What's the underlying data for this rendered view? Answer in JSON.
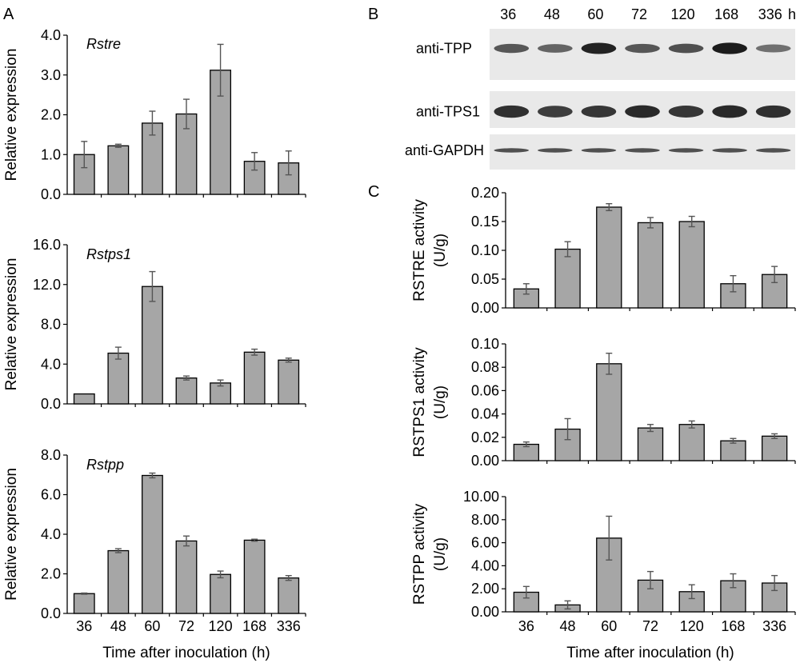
{
  "panel_labels": {
    "a": "A",
    "b": "B",
    "c": "C"
  },
  "shared_x": {
    "categories": [
      "36",
      "48",
      "60",
      "72",
      "120",
      "168",
      "336"
    ],
    "label": "Time after inoculation (h)"
  },
  "blot": {
    "time_labels": [
      "36",
      "48",
      "60",
      "72",
      "120",
      "168",
      "336"
    ],
    "unit": "h",
    "rows": [
      {
        "label": "anti-TPP",
        "intensity": [
          0.55,
          0.45,
          0.95,
          0.55,
          0.6,
          1.0,
          0.35
        ]
      },
      {
        "label": "anti-TPS1",
        "intensity": [
          0.85,
          0.75,
          0.8,
          0.9,
          0.8,
          0.9,
          0.85
        ]
      },
      {
        "label": "anti-GAPDH",
        "intensity": [
          0.6,
          0.6,
          0.6,
          0.6,
          0.6,
          0.6,
          0.6
        ]
      }
    ]
  },
  "colors": {
    "bar": "#a6a6a6",
    "bar_edge": "#000000",
    "error": "#555555",
    "blot_bg": "#e9e9e9",
    "band": "#111111"
  },
  "chart_data": [
    {
      "id": "A1",
      "type": "bar",
      "title": "Rstre",
      "title_italic": true,
      "categories": [
        "36",
        "48",
        "60",
        "72",
        "120",
        "168",
        "336"
      ],
      "values": [
        1.0,
        1.22,
        1.79,
        2.02,
        3.12,
        0.83,
        0.79
      ],
      "errors": [
        0.33,
        0.04,
        0.3,
        0.37,
        0.65,
        0.22,
        0.3
      ],
      "ylabel": "Relative expression",
      "ylim": [
        0,
        4.0
      ],
      "yticks": [
        "0.0",
        "1.0",
        "2.0",
        "3.0",
        "4.0"
      ],
      "ytick_values": [
        0,
        1,
        2,
        3,
        4
      ],
      "xlabel": "",
      "show_xticklabels": false
    },
    {
      "id": "A2",
      "type": "bar",
      "title": "Rstps1",
      "title_italic": true,
      "categories": [
        "36",
        "48",
        "60",
        "72",
        "120",
        "168",
        "336"
      ],
      "values": [
        1.0,
        5.1,
        11.8,
        2.6,
        2.1,
        5.2,
        4.4
      ],
      "errors": [
        0.0,
        0.6,
        1.5,
        0.2,
        0.3,
        0.3,
        0.2
      ],
      "ylabel": "Relative expression",
      "ylim": [
        0,
        16.0
      ],
      "yticks": [
        "0.0",
        "4.0",
        "8.0",
        "12.0",
        "16.0"
      ],
      "ytick_values": [
        0,
        4,
        8,
        12,
        16
      ],
      "xlabel": "",
      "show_xticklabels": false
    },
    {
      "id": "A3",
      "type": "bar",
      "title": "Rstpp",
      "title_italic": true,
      "categories": [
        "36",
        "48",
        "60",
        "72",
        "120",
        "168",
        "336"
      ],
      "values": [
        1.0,
        3.17,
        6.97,
        3.66,
        1.97,
        3.7,
        1.79
      ],
      "errors": [
        0.03,
        0.1,
        0.12,
        0.25,
        0.17,
        0.05,
        0.12
      ],
      "ylabel": "Relative expression",
      "ylim": [
        0,
        8.0
      ],
      "yticks": [
        "0.0",
        "2.0",
        "4.0",
        "6.0",
        "8.0"
      ],
      "ytick_values": [
        0,
        2,
        4,
        6,
        8
      ],
      "xlabel": "Time after inoculation (h)",
      "show_xticklabels": true
    },
    {
      "id": "C1",
      "type": "bar",
      "title": "",
      "categories": [
        "36",
        "48",
        "60",
        "72",
        "120",
        "168",
        "336"
      ],
      "values": [
        0.033,
        0.102,
        0.175,
        0.148,
        0.15,
        0.042,
        0.058
      ],
      "errors": [
        0.009,
        0.013,
        0.006,
        0.009,
        0.009,
        0.014,
        0.014
      ],
      "ylabel": [
        "RSTRE activity",
        "(U/g)"
      ],
      "ylim": [
        0,
        0.2
      ],
      "yticks": [
        "0.00",
        "0.05",
        "0.10",
        "0.15",
        "0.20"
      ],
      "ytick_values": [
        0,
        0.05,
        0.1,
        0.15,
        0.2
      ],
      "xlabel": "",
      "show_xticklabels": false
    },
    {
      "id": "C2",
      "type": "bar",
      "title": "",
      "categories": [
        "36",
        "48",
        "60",
        "72",
        "120",
        "168",
        "336"
      ],
      "values": [
        0.014,
        0.027,
        0.083,
        0.028,
        0.031,
        0.017,
        0.021
      ],
      "errors": [
        0.002,
        0.009,
        0.009,
        0.003,
        0.003,
        0.002,
        0.002
      ],
      "ylabel": [
        "RSTPS1 activity",
        "(U/g)"
      ],
      "ylim": [
        0,
        0.1
      ],
      "yticks": [
        "0.00",
        "0.02",
        "0.04",
        "0.06",
        "0.08",
        "0.10"
      ],
      "ytick_values": [
        0,
        0.02,
        0.04,
        0.06,
        0.08,
        0.1
      ],
      "xlabel": "",
      "show_xticklabels": false
    },
    {
      "id": "C3",
      "type": "bar",
      "title": "",
      "categories": [
        "36",
        "48",
        "60",
        "72",
        "120",
        "168",
        "336"
      ],
      "values": [
        1.7,
        0.6,
        6.4,
        2.75,
        1.75,
        2.7,
        2.5
      ],
      "errors": [
        0.5,
        0.35,
        1.9,
        0.75,
        0.6,
        0.6,
        0.65
      ],
      "ylabel": [
        "RSTPP activity",
        "(U/g)"
      ],
      "ylim": [
        0,
        10.0
      ],
      "yticks": [
        "0.00",
        "2.00",
        "4.00",
        "6.00",
        "8.00",
        "10.00"
      ],
      "ytick_values": [
        0,
        2,
        4,
        6,
        8,
        10
      ],
      "xlabel": "Time after inoculation (h)",
      "show_xticklabels": true
    }
  ]
}
